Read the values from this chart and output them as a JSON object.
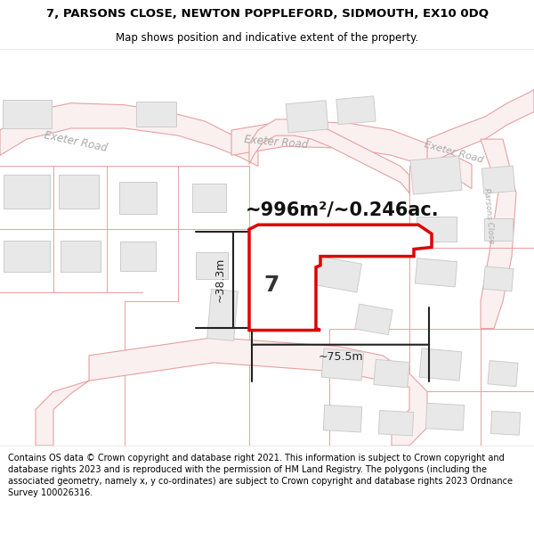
{
  "title_line1": "7, PARSONS CLOSE, NEWTON POPPLEFORD, SIDMOUTH, EX10 0DQ",
  "title_line2": "Map shows position and indicative extent of the property.",
  "footer_text": "Contains OS data © Crown copyright and database right 2021. This information is subject to Crown copyright and database rights 2023 and is reproduced with the permission of HM Land Registry. The polygons (including the associated geometry, namely x, y co-ordinates) are subject to Crown copyright and database rights 2023 Ordnance Survey 100026316.",
  "area_label": "~996m²/~0.246ac.",
  "number_label": "7",
  "width_label": "~75.5m",
  "height_label": "~38.3m",
  "map_bg": "#ffffff",
  "road_line_color": "#e8a0a0",
  "road_fill_color": "#f5e8e8",
  "building_fill": "#e8e8e8",
  "building_edge": "#cccccc",
  "boundary_line": "#e8a0a0",
  "highlight_color": "#dd0000",
  "highlight_fill": "#ffffff",
  "road_text_color": "#aaaaaa",
  "parsons_text_color": "#aaaaaa",
  "dim_line_color": "#222222",
  "title_color": "#000000",
  "footer_color": "#000000",
  "title_fontsize": 9.5,
  "subtitle_fontsize": 8.5,
  "footer_fontsize": 7.0,
  "area_fontsize": 15,
  "number_fontsize": 18,
  "dim_fontsize": 9
}
